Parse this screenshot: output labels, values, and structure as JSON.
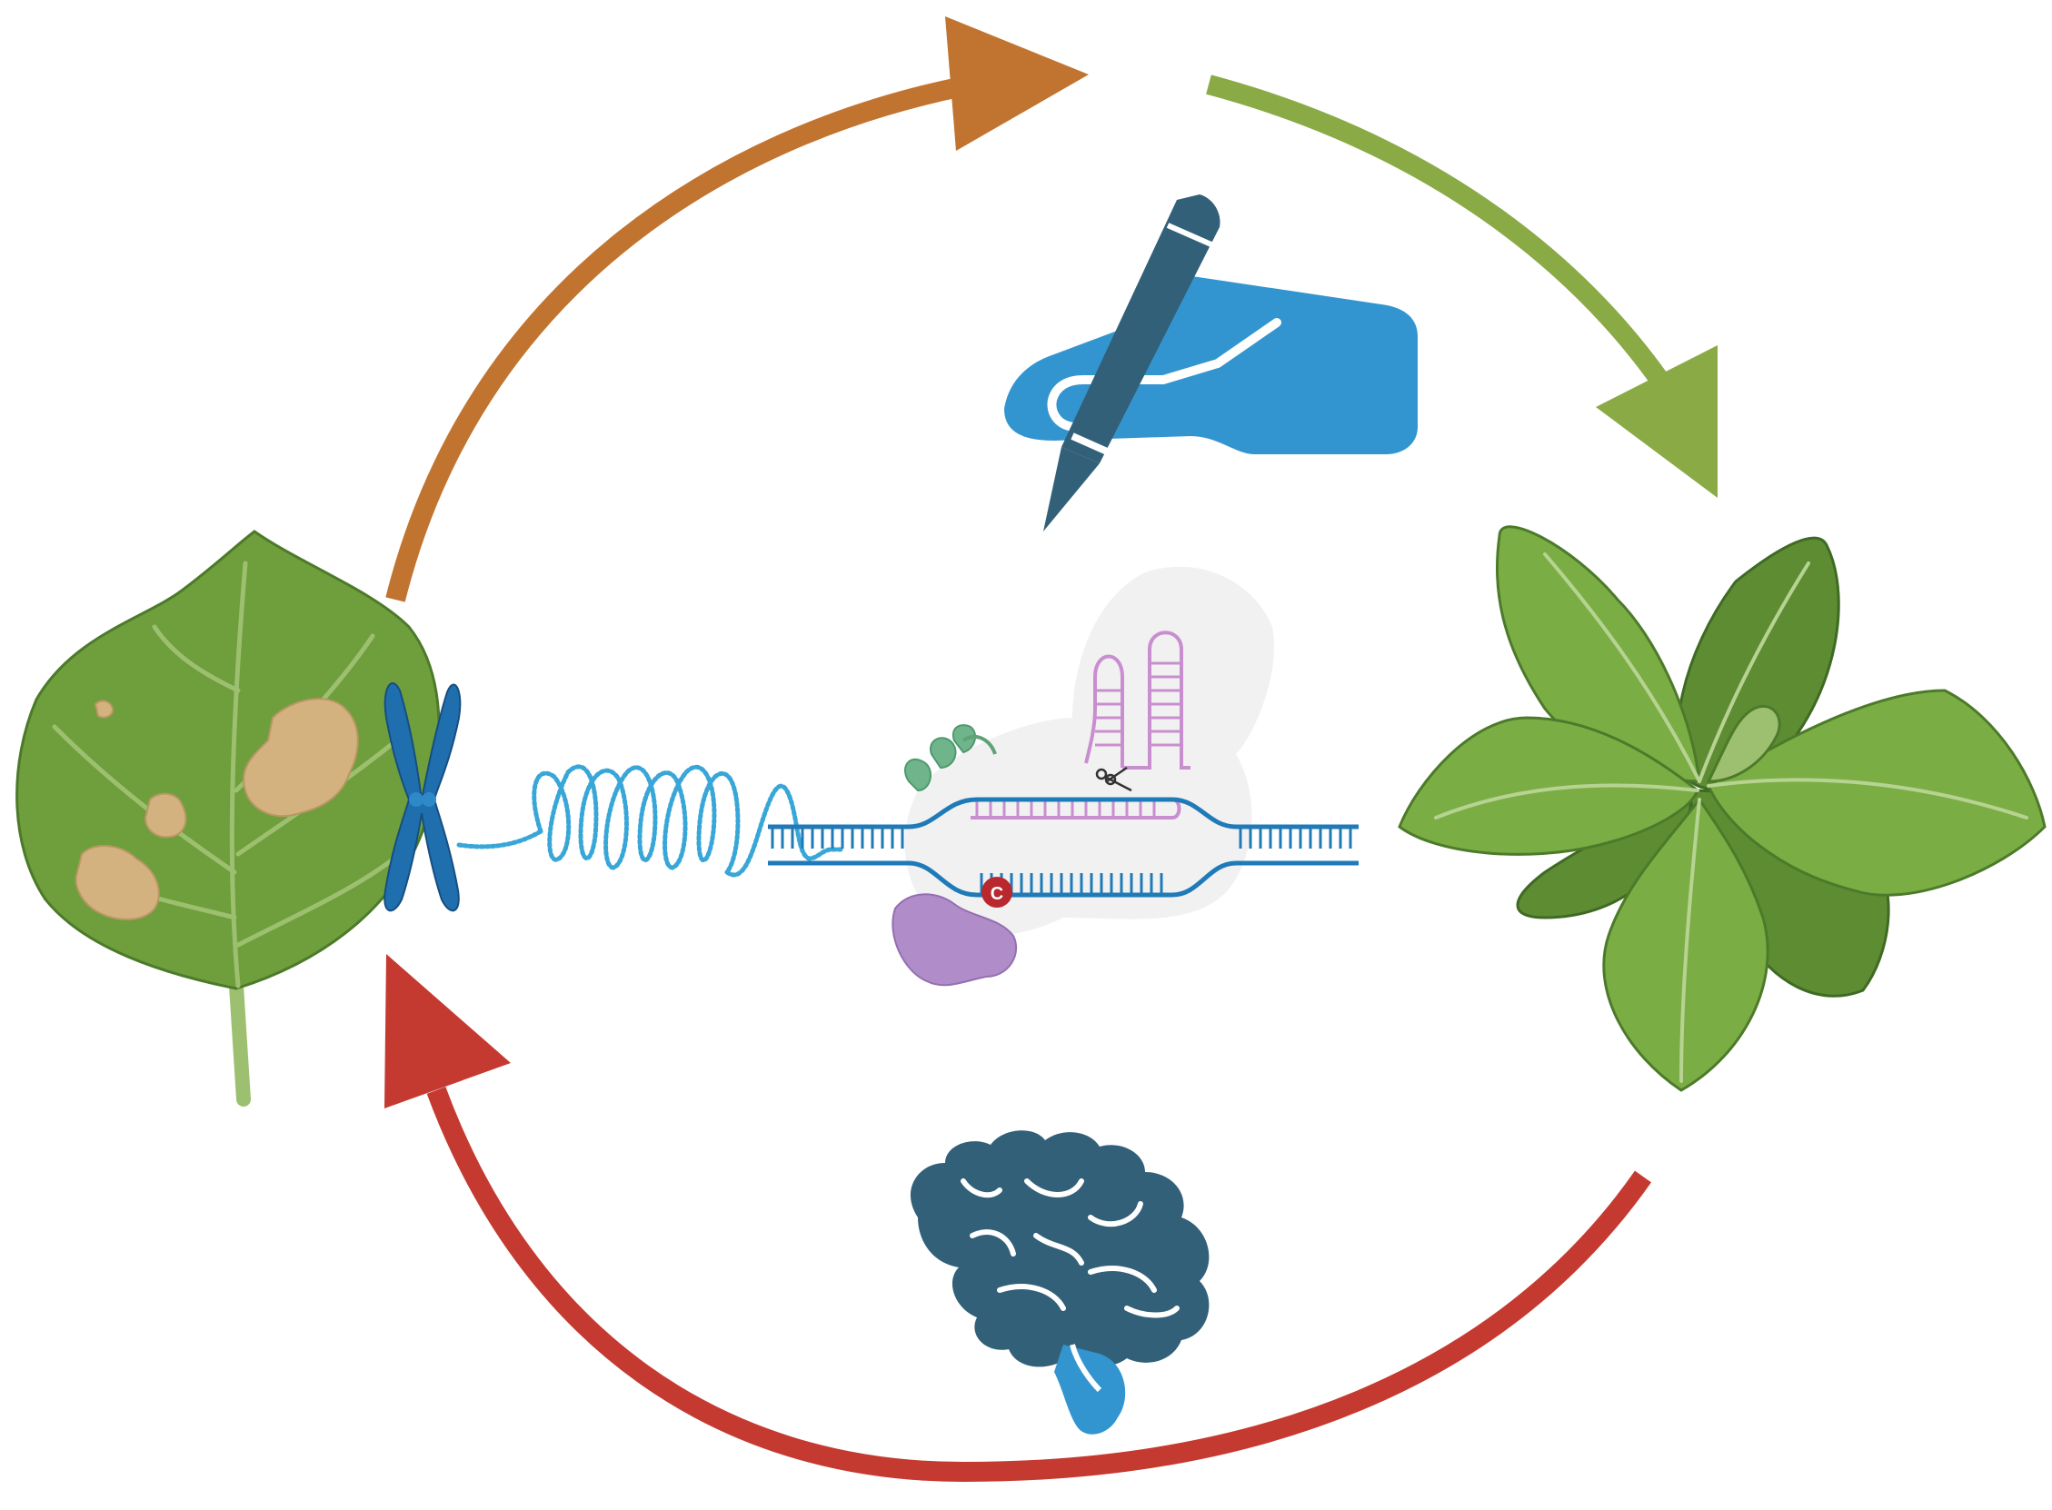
{
  "diagram": {
    "nodes": [
      {
        "id": "diseased-leaf",
        "icon": "diseased-leaf-icon"
      },
      {
        "id": "chromosome",
        "icon": "chromosome-icon"
      },
      {
        "id": "dna-coil",
        "icon": "dna-coil-icon"
      },
      {
        "id": "base-editor",
        "icon": "crispr-base-editor-icon",
        "edited_base_label": "C"
      },
      {
        "id": "design",
        "icon": "hand-writing-pen-icon"
      },
      {
        "id": "healthy-plant",
        "icon": "healthy-plant-icon"
      },
      {
        "id": "knowledge",
        "icon": "brain-icon"
      }
    ],
    "arrows": [
      {
        "id": "arrow-leaf-to-design",
        "color": "#C07430"
      },
      {
        "id": "arrow-design-to-plant",
        "color": "#8AAA46"
      },
      {
        "id": "arrow-plant-to-leaf",
        "color": "#C43A31"
      }
    ]
  },
  "colors": {
    "leaf_green": "#6F9E3C",
    "lesion_tan": "#D4B27F",
    "chromosome_blue": "#1F6FAF",
    "dna_cyan": "#39A6D8",
    "dark_navy": "#336079",
    "hand_blue": "#3395CF",
    "rna_pink": "#C98ED0",
    "protein_purple": "#B08CC8",
    "edit_red": "#B8282E"
  }
}
